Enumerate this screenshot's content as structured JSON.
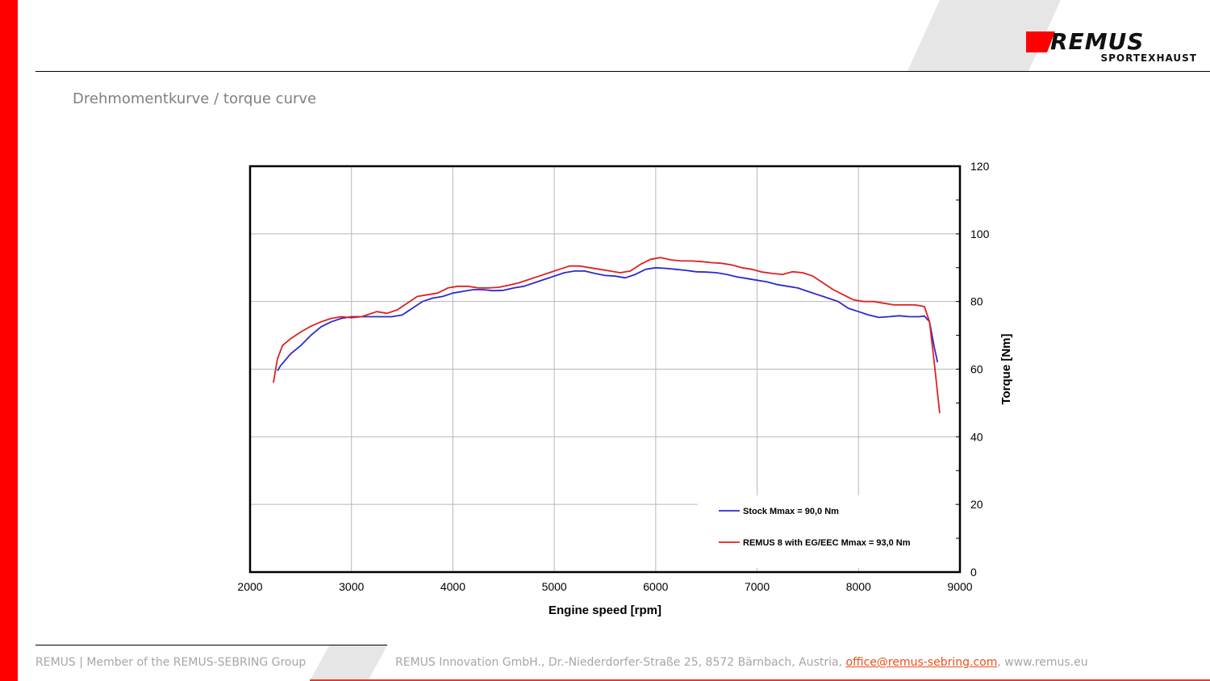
{
  "header": {
    "logo_text": "REMUS",
    "logo_subtitle": "SPORTEXHAUST",
    "brand_color": "#ff0000"
  },
  "slide": {
    "title": "Drehmomentkurve / torque curve"
  },
  "footer": {
    "left_text": "REMUS | Member of the REMUS-SEBRING Group",
    "address": "REMUS Innovation GmbH., Dr.-Niederdorfer-Straße 25, 8572 Bärnbach, Austria,",
    "email": "office@remus-sebring.com",
    "separator": ",",
    "website": "www.remus.eu",
    "link_color": "#e8501d"
  },
  "chart_data": {
    "type": "line",
    "title": "",
    "xlabel": "Engine speed [rpm]",
    "ylabel": "Torque [Nm]",
    "xlim": [
      2000,
      9000
    ],
    "ylim": [
      0,
      120
    ],
    "xticks": [
      2000,
      3000,
      4000,
      5000,
      6000,
      7000,
      8000,
      9000
    ],
    "yticks": [
      0,
      20,
      40,
      60,
      80,
      100,
      120
    ],
    "y_axis_position": "right",
    "grid": true,
    "legend_position": "bottom-right",
    "series": [
      {
        "name": "Stock Mmax = 90,0 Nm",
        "color": "#2b2bd0",
        "x": [
          2270,
          2300,
          2400,
          2500,
          2600,
          2700,
          2800,
          2900,
          3000,
          3100,
          3200,
          3300,
          3400,
          3500,
          3600,
          3700,
          3800,
          3900,
          4000,
          4100,
          4200,
          4300,
          4400,
          4500,
          4600,
          4700,
          4800,
          4900,
          5000,
          5100,
          5200,
          5300,
          5400,
          5500,
          5600,
          5700,
          5800,
          5900,
          6000,
          6100,
          6200,
          6300,
          6400,
          6500,
          6600,
          6700,
          6800,
          6900,
          7000,
          7100,
          7200,
          7300,
          7400,
          7500,
          7600,
          7700,
          7800,
          7900,
          8000,
          8100,
          8200,
          8300,
          8400,
          8500,
          8600,
          8650,
          8700,
          8750,
          8780
        ],
        "y": [
          59.5,
          61,
          64.5,
          67,
          70,
          72.5,
          74,
          75,
          75.5,
          75.5,
          75.5,
          75.5,
          75.5,
          76,
          78,
          80,
          81,
          81.5,
          82.5,
          83,
          83.5,
          83.5,
          83.2,
          83.3,
          84,
          84.5,
          85.5,
          86.5,
          87.5,
          88.5,
          89,
          89,
          88.3,
          87.7,
          87.5,
          87,
          88,
          89.5,
          90,
          89.8,
          89.5,
          89.2,
          88.8,
          88.7,
          88.5,
          88,
          87.3,
          86.8,
          86.3,
          85.8,
          85,
          84.5,
          84,
          83,
          82,
          81,
          80,
          78,
          77,
          76,
          75.3,
          75.5,
          75.8,
          75.5,
          75.5,
          75.7,
          74,
          66,
          62
        ]
      },
      {
        "name": "REMUS 8 with EG/EEC Mmax = 93,0 Nm",
        "color": "#e02020",
        "x": [
          2230,
          2270,
          2320,
          2400,
          2500,
          2600,
          2700,
          2800,
          2900,
          3000,
          3100,
          3150,
          3250,
          3350,
          3450,
          3550,
          3650,
          3750,
          3850,
          3950,
          4050,
          4150,
          4250,
          4350,
          4450,
          4550,
          4650,
          4750,
          4850,
          4950,
          5050,
          5150,
          5250,
          5350,
          5450,
          5550,
          5650,
          5750,
          5850,
          5950,
          6050,
          6150,
          6250,
          6350,
          6450,
          6550,
          6650,
          6750,
          6850,
          6950,
          7050,
          7150,
          7250,
          7350,
          7450,
          7550,
          7650,
          7750,
          7850,
          7950,
          8050,
          8150,
          8250,
          8350,
          8450,
          8550,
          8600,
          8650,
          8700,
          8750,
          8800
        ],
        "y": [
          56,
          63,
          67,
          69,
          71,
          72.7,
          74,
          75,
          75.5,
          75.2,
          75.5,
          76,
          77,
          76.5,
          77.5,
          79.5,
          81.5,
          82,
          82.5,
          84,
          84.5,
          84.5,
          84,
          84,
          84.2,
          84.8,
          85.5,
          86.5,
          87.5,
          88.5,
          89.5,
          90.5,
          90.5,
          90,
          89.5,
          89,
          88.5,
          89,
          91,
          92.5,
          93,
          92.3,
          92,
          92,
          91.8,
          91.5,
          91.3,
          90.8,
          90,
          89.5,
          88.7,
          88.3,
          88,
          88.8,
          88.5,
          87.5,
          85.5,
          83.5,
          82,
          80.5,
          80,
          80,
          79.5,
          79,
          79,
          79,
          78.8,
          78.5,
          74,
          61,
          47
        ]
      }
    ]
  }
}
